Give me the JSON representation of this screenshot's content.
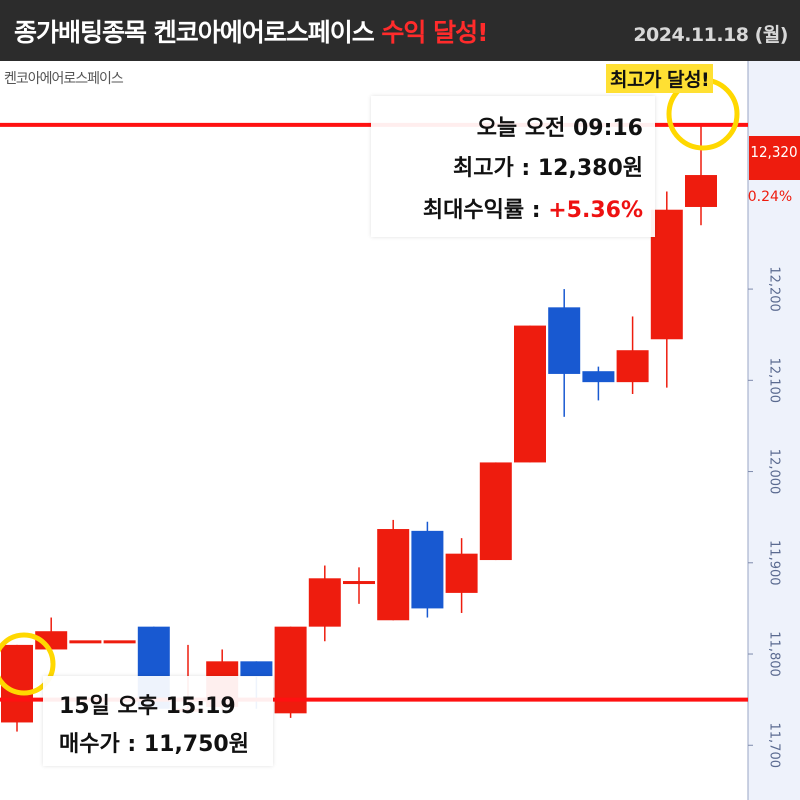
{
  "header": {
    "title_prefix": "종가배팅종목 켄코아에어로스페이스 ",
    "title_highlight": "수익 달성!",
    "date": "2024.11.18 (월)"
  },
  "annotations": {
    "stock_tag": "켄코아에어로스페이스",
    "peak_badge": "최고가 달성!",
    "peak_time": "오늘 오전 09:16",
    "peak_price_label": "최고가 : 12,380원",
    "max_return_prefix": "최대수익률 : ",
    "max_return_value": "+5.36%",
    "buy_time": "15일 오후 15:19",
    "buy_price_label": "매수가 : 11,750원"
  },
  "colors": {
    "up": "#ee1c0e",
    "down": "#1859d1",
    "reference_line": "#ff1111",
    "highlight_circle": "#ffd800",
    "axis_bg": "#eef2fb"
  },
  "chart_data": {
    "type": "candlestick",
    "ylim": [
      11640,
      12450
    ],
    "ticks": [
      {
        "value": 12200,
        "label": "12,200"
      },
      {
        "value": 12100,
        "label": "12,100"
      },
      {
        "value": 12000,
        "label": "12,000"
      },
      {
        "value": 11900,
        "label": "11,900"
      },
      {
        "value": 11800,
        "label": "11,800"
      },
      {
        "value": 11700,
        "label": "11,700"
      }
    ],
    "current_price_label": "12,320",
    "current_change_label": "0.24%",
    "reference_lines": [
      {
        "name": "최고가",
        "value": 12380
      },
      {
        "name": "매수가",
        "value": 11750
      }
    ],
    "candles": [
      {
        "open": 11725,
        "close": 11810,
        "high": 11810,
        "low": 11715
      },
      {
        "open": 11805,
        "close": 11825,
        "high": 11840,
        "low": 11790
      },
      {
        "open": 11815,
        "close": 11815,
        "high": 11815,
        "low": 11815
      },
      {
        "open": 11815,
        "close": 11815,
        "high": 11815,
        "low": 11815
      },
      {
        "open": 11830,
        "close": 11740,
        "high": 11830,
        "low": 11740
      },
      {
        "open": 11740,
        "close": 11740,
        "high": 11810,
        "low": 11735
      },
      {
        "open": 11742,
        "close": 11792,
        "high": 11805,
        "low": 11738
      },
      {
        "open": 11792,
        "close": 11775,
        "high": 11792,
        "low": 11740
      },
      {
        "open": 11735,
        "close": 11830,
        "high": 11830,
        "low": 11730
      },
      {
        "open": 11830,
        "close": 11883,
        "high": 11897,
        "low": 11814
      },
      {
        "open": 11880,
        "close": 11880,
        "high": 11895,
        "low": 11855
      },
      {
        "open": 11837,
        "close": 11937,
        "high": 11947,
        "low": 11837
      },
      {
        "open": 11935,
        "close": 11850,
        "high": 11945,
        "low": 11840
      },
      {
        "open": 11867,
        "close": 11910,
        "high": 11927,
        "low": 11845
      },
      {
        "open": 11903,
        "close": 12010,
        "high": 12010,
        "low": 11903
      },
      {
        "open": 12010,
        "close": 12160,
        "high": 12160,
        "low": 12010
      },
      {
        "open": 12180,
        "close": 12107,
        "high": 12200,
        "low": 12060
      },
      {
        "open": 12110,
        "close": 12098,
        "high": 12115,
        "low": 12078
      },
      {
        "open": 12098,
        "close": 12133,
        "high": 12170,
        "low": 12085
      },
      {
        "open": 12145,
        "close": 12287,
        "high": 12307,
        "low": 12092
      },
      {
        "open": 12290,
        "close": 12325,
        "high": 12380,
        "low": 12270
      }
    ]
  }
}
